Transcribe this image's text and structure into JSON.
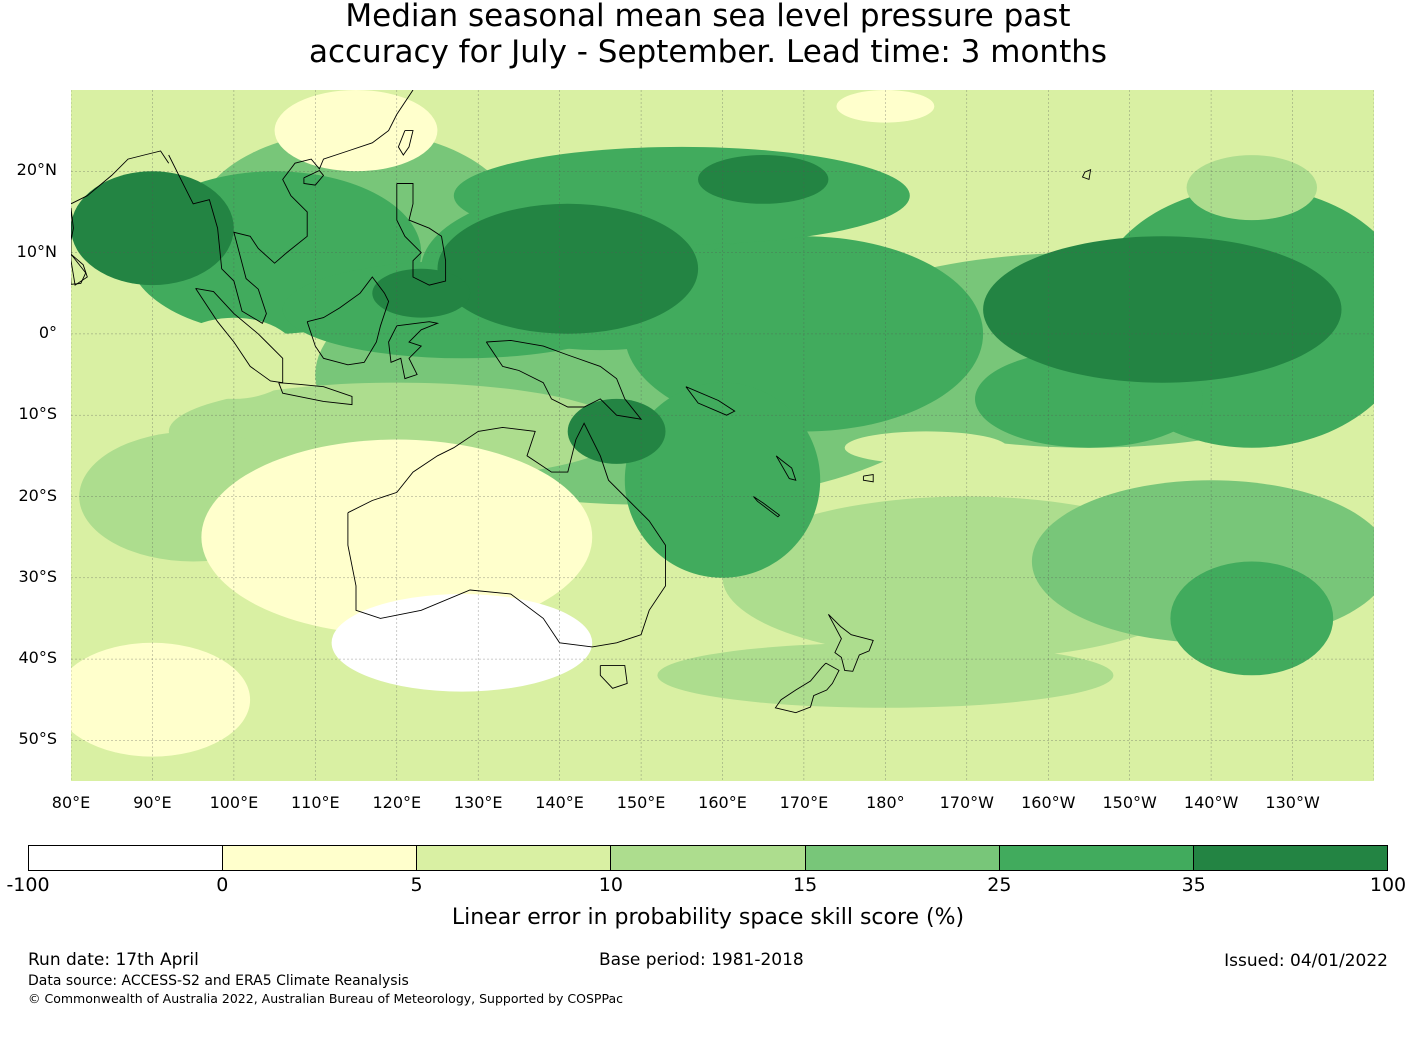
{
  "title": {
    "line1": "Median seasonal mean sea level pressure past",
    "line2": "accuracy for July - September. Lead time: 3 months"
  },
  "map": {
    "lat_labels": [
      "20°N",
      "10°N",
      "0°",
      "10°S",
      "20°S",
      "30°S",
      "40°S",
      "50°S"
    ],
    "lon_labels": [
      "80°E",
      "90°E",
      "100°E",
      "110°E",
      "120°E",
      "130°E",
      "140°E",
      "150°E",
      "160°E",
      "170°E",
      "180°",
      "170°W",
      "160°W",
      "150°W",
      "140°W",
      "130°W"
    ],
    "extent": {
      "lon_min": 80,
      "lon_max": 240,
      "lat_min": -55,
      "lat_max": 30
    },
    "gridlines": true,
    "coastlines": true
  },
  "colorbar": {
    "ticks": [
      "-100",
      "0",
      "5",
      "10",
      "15",
      "25",
      "35",
      "100"
    ],
    "colors": [
      "#ffffff",
      "#ffffcc",
      "#d9f0a3",
      "#addd8e",
      "#78c679",
      "#41ab5d",
      "#238443"
    ],
    "label": "Linear error in probability space skill score (%)"
  },
  "footer": {
    "run_date": "Run date: 17th April",
    "base_period": "Base period: 1981-2018",
    "issued": "Issued: 04/01/2022",
    "data_source": "Data source: ACCESS-S2 and ERA5 Climate Reanalysis",
    "copyright": "© Commonwealth of Australia 2022, Australian Bureau of Meteorology, Supported by COSPPac"
  }
}
